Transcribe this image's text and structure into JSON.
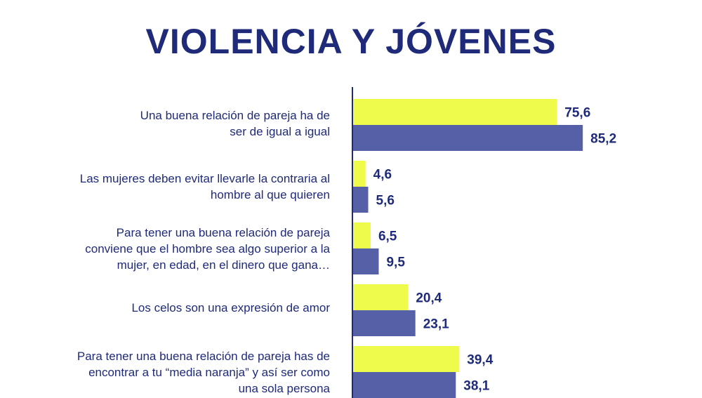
{
  "chart_data": {
    "type": "bar",
    "orientation": "horizontal",
    "title": "VIOLENCIA Y JÓVENES",
    "categories": [
      "Una buena relación de pareja ha de ser de igual a igual",
      "Las mujeres deben evitar llevarle la contraria al hombre al que quieren",
      "Para tener una buena relación de pareja conviene que el hombre sea algo superior a la mujer, en edad, en el dinero que gana…",
      "Los celos son una expresión de amor",
      "Para tener una buena relación de pareja has de encontrar a tu “media naranja” y así ser como una sola persona"
    ],
    "series": [
      {
        "name": "series-1",
        "color": "#eefb4a",
        "values": [
          75.6,
          4.6,
          6.5,
          20.4,
          39.4
        ],
        "labels": [
          "75,6",
          "4,6",
          "6,5",
          "20,4",
          "39,4"
        ]
      },
      {
        "name": "series-2",
        "color": "#5560a7",
        "values": [
          85.2,
          5.6,
          9.5,
          23.1,
          38.1
        ],
        "labels": [
          "85,2",
          "5,6",
          "9,5",
          "23,1",
          "38,1"
        ]
      }
    ],
    "xlim": [
      0,
      100
    ],
    "legend": "none",
    "grid": false
  },
  "labels": {
    "cat0": [
      "Una buena relación de pareja ha de",
      "ser de igual a igual"
    ],
    "cat1": [
      "Las mujeres deben evitar llevarle la contraria al",
      "hombre al que quieren"
    ],
    "cat2": [
      "Para tener una buena relación de pareja",
      "conviene que el hombre sea algo superior a la",
      "mujer, en edad, en el dinero que gana…"
    ],
    "cat3": [
      "Los celos son una expresión de amor"
    ],
    "cat4": [
      "Para tener una buena relación de pareja has de",
      "encontrar a tu “media naranja” y así ser como",
      "una sola persona"
    ]
  },
  "colors": {
    "text": "#1f2a78",
    "axis": "#1f2a78"
  }
}
